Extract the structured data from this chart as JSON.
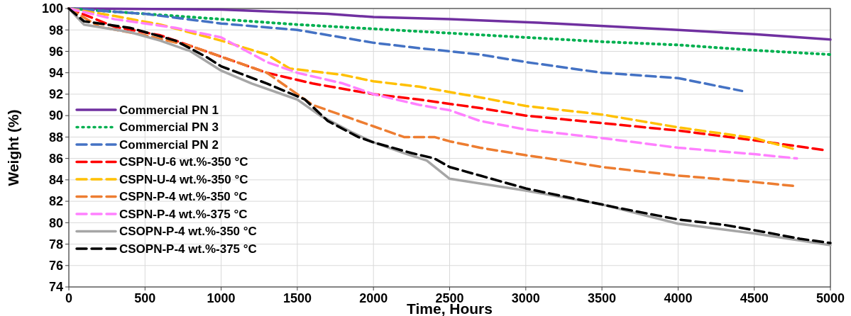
{
  "chart_data": {
    "type": "line",
    "xlabel": "Time, Hours",
    "ylabel": "Weight (%)",
    "xlim": [
      0,
      5000
    ],
    "ylim": [
      74,
      100
    ],
    "xticks": [
      0,
      500,
      1000,
      1500,
      2000,
      2500,
      3000,
      3500,
      4000,
      4500,
      5000
    ],
    "yticks": [
      74,
      76,
      78,
      80,
      82,
      84,
      86,
      88,
      90,
      92,
      94,
      96,
      98,
      100
    ],
    "grid": true,
    "legend": "left",
    "marker": "none",
    "series": [
      {
        "name": "Commercial PN 1",
        "color": "#7030a0",
        "line_style": "solid",
        "x": [
          0,
          1000,
          1700,
          2000,
          2500,
          3200,
          3600,
          4000,
          4500,
          5000
        ],
        "values": [
          100,
          99.9,
          99.5,
          99.2,
          99.0,
          98.6,
          98.3,
          98.0,
          97.6,
          97.1
        ]
      },
      {
        "name": "Commercial PN 3",
        "color": "#00b050",
        "line_style": "dotted",
        "x": [
          0,
          500,
          1000,
          1500,
          2000,
          2500,
          3000,
          3500,
          4000,
          4500,
          5000
        ],
        "values": [
          100,
          99.5,
          99.0,
          98.5,
          98.1,
          97.7,
          97.3,
          96.9,
          96.6,
          96.1,
          95.7
        ]
      },
      {
        "name": "Commercial PN 2",
        "color": "#4472c4",
        "line_style": "dashed",
        "x": [
          0,
          500,
          1000,
          1500,
          2000,
          2300,
          2700,
          3000,
          3200,
          3500,
          4000,
          4420
        ],
        "values": [
          100,
          99.5,
          98.6,
          98.0,
          96.8,
          96.3,
          95.7,
          95.0,
          94.6,
          94.0,
          93.5,
          92.3
        ]
      },
      {
        "name": "CSPN-U-6 wt.%-350 °C",
        "color": "#ff0000",
        "line_style": "dashed",
        "x": [
          0,
          300,
          600,
          1000,
          1300,
          1600,
          2000,
          2300,
          2700,
          3000,
          3500,
          4000,
          4500,
          4950
        ],
        "values": [
          100,
          98.3,
          97.5,
          95.5,
          94.0,
          93.0,
          92.0,
          91.5,
          90.7,
          90.0,
          89.3,
          88.6,
          87.7,
          86.8
        ]
      },
      {
        "name": "CSPN-U-4 wt.%-350 °C",
        "color": "#ffc000",
        "line_style": "dashed",
        "x": [
          0,
          300,
          600,
          1000,
          1300,
          1450,
          1800,
          2000,
          2300,
          2700,
          3000,
          3500,
          4000,
          4500,
          4780
        ],
        "values": [
          100,
          99.3,
          98.5,
          97.0,
          95.7,
          94.4,
          93.8,
          93.2,
          92.7,
          91.7,
          90.9,
          90.1,
          88.9,
          87.9,
          86.8
        ]
      },
      {
        "name": "CSPN-P-4 wt.%-350 °C",
        "color": "#ed7d31",
        "line_style": "dashed",
        "x": [
          0,
          200,
          500,
          800,
          1000,
          1300,
          1500,
          1600,
          1800,
          2000,
          2200,
          2400,
          2500,
          2700,
          3000,
          3150,
          3500,
          4000,
          4500,
          4780
        ],
        "values": [
          100,
          98.3,
          97.5,
          96.5,
          95.5,
          94.0,
          92.0,
          91.0,
          90.0,
          89.0,
          88.0,
          88.0,
          87.6,
          87.0,
          86.3,
          86.0,
          85.2,
          84.4,
          83.8,
          83.4
        ]
      },
      {
        "name": "CSPN-P-4 wt.%-375 °C",
        "color": "#ff80ff",
        "line_style": "dashed",
        "x": [
          0,
          300,
          700,
          1000,
          1300,
          1500,
          1800,
          2000,
          2300,
          2500,
          2700,
          3000,
          3500,
          4000,
          4500,
          4780
        ],
        "values": [
          100,
          99.0,
          98.2,
          97.3,
          95.0,
          94.0,
          93.0,
          92.0,
          91.0,
          90.5,
          89.5,
          88.7,
          87.9,
          87.0,
          86.4,
          86.0
        ]
      },
      {
        "name": "CSOPN-P-4 wt.%-350 °C",
        "color": "#a6a6a6",
        "line_style": "solid",
        "x": [
          0,
          100,
          400,
          600,
          800,
          1000,
          1200,
          1500,
          1650,
          1850,
          2000,
          2200,
          2350,
          2500,
          3000,
          3500,
          4000,
          4500,
          5000
        ],
        "values": [
          100,
          98.5,
          97.8,
          97.0,
          96.0,
          94.2,
          93.0,
          91.5,
          90.0,
          88.5,
          87.5,
          86.5,
          85.8,
          84.1,
          83.0,
          81.7,
          79.9,
          79.0,
          77.9
        ]
      },
      {
        "name": "CSOPN-P-4 wt.%-375 °C",
        "color": "#000000",
        "line_style": "dashed",
        "x": [
          0,
          100,
          400,
          700,
          900,
          1000,
          1300,
          1550,
          1700,
          1900,
          2000,
          2250,
          2400,
          2500,
          2700,
          3000,
          3300,
          3600,
          4000,
          4300,
          4500,
          4800,
          5000
        ],
        "values": [
          100,
          98.8,
          98.2,
          97.0,
          95.5,
          94.6,
          93.0,
          91.5,
          89.5,
          88.0,
          87.5,
          86.5,
          86.0,
          85.2,
          84.4,
          83.2,
          82.3,
          81.4,
          80.3,
          79.8,
          79.3,
          78.5,
          78.1
        ]
      }
    ]
  }
}
